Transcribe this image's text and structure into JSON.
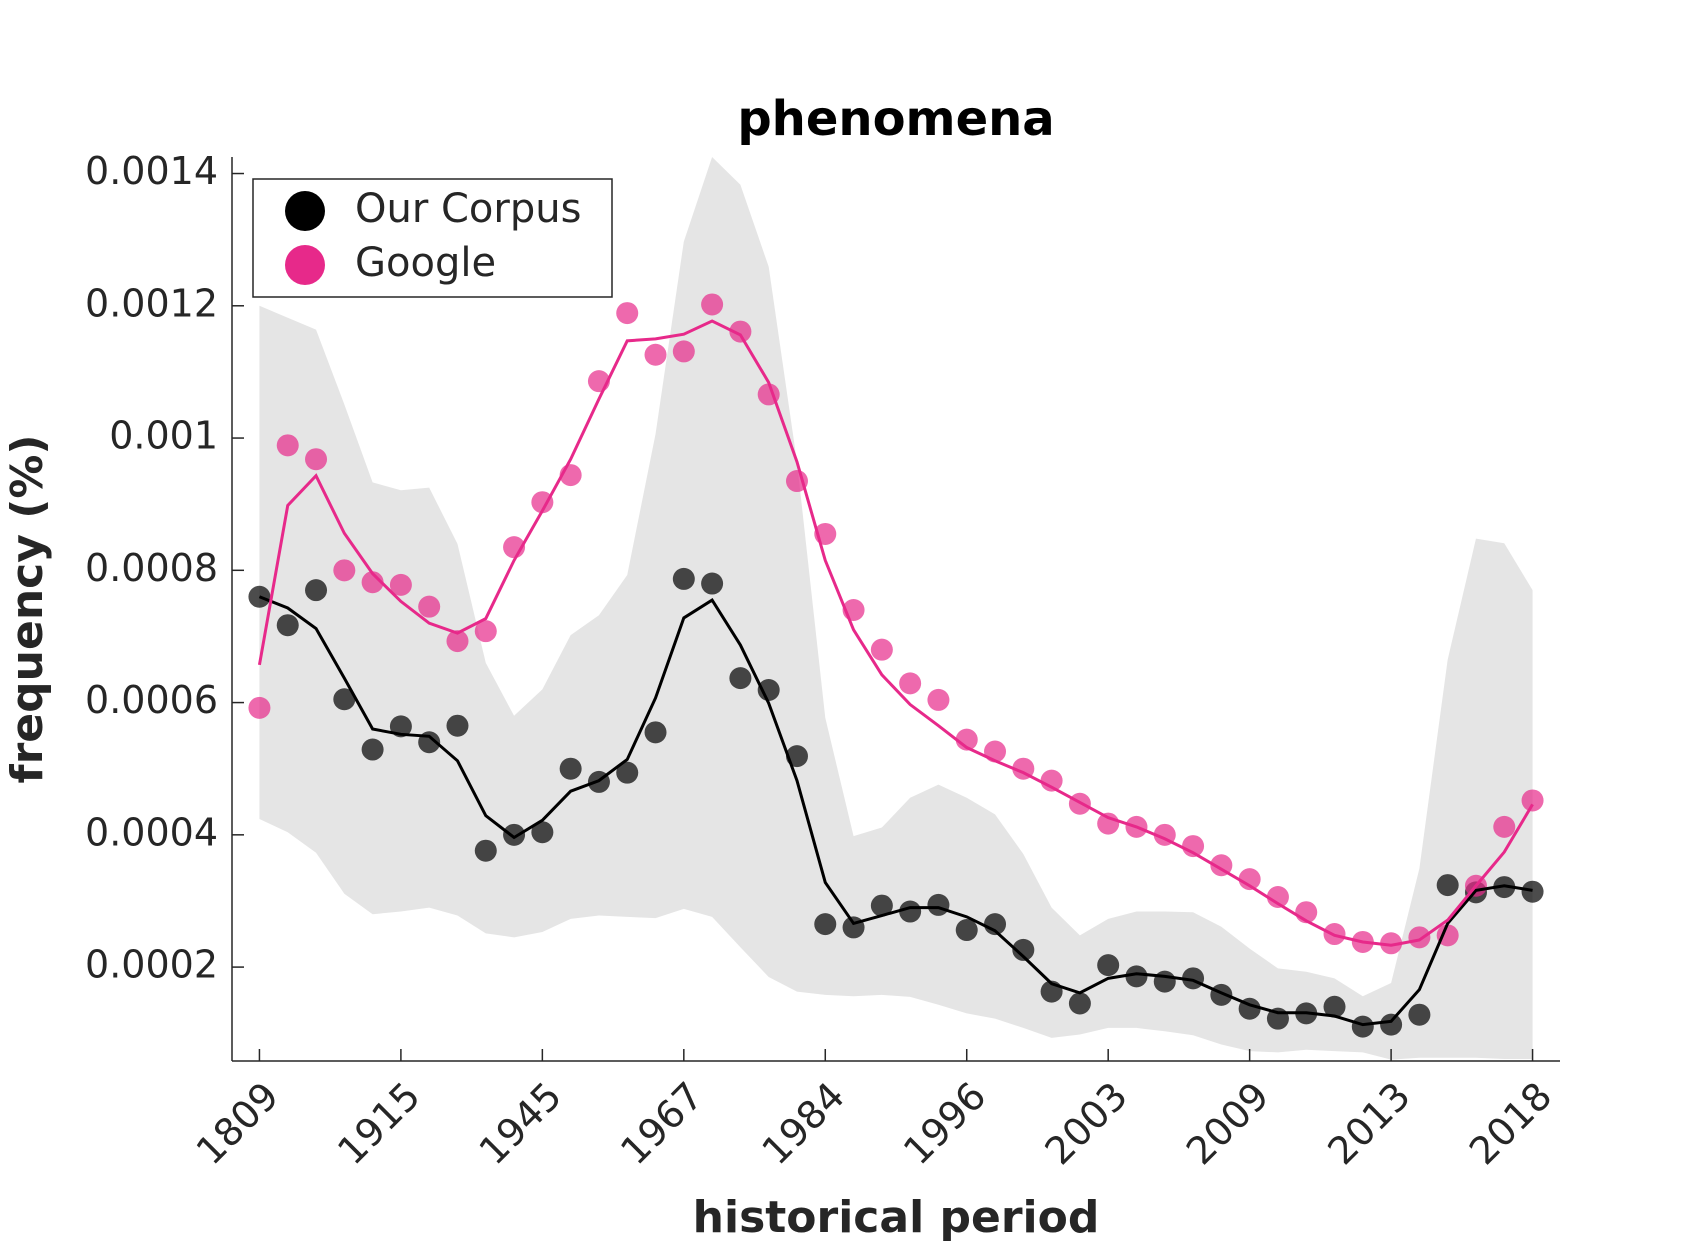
{
  "chart_data": {
    "type": "line",
    "title": "phenomena",
    "xlabel": "historical period",
    "ylabel": "frequency (%)",
    "categories": [
      "1809",
      null,
      null,
      null,
      null,
      "1915",
      null,
      null,
      null,
      null,
      "1945",
      null,
      null,
      null,
      null,
      "1967",
      null,
      null,
      null,
      null,
      "1984",
      null,
      null,
      null,
      null,
      "1996",
      null,
      null,
      null,
      null,
      "2003",
      null,
      null,
      null,
      null,
      "2009",
      null,
      null,
      null,
      null,
      "2013",
      null,
      null,
      null,
      null,
      "2018"
    ],
    "ylim": [
      5.8e-05,
      0.001425
    ],
    "yticks": [
      0.0002,
      0.0004,
      0.0006,
      0.0008,
      0.001,
      0.0012,
      0.0014
    ],
    "legend": "upper left",
    "band": {
      "color": "#e5e5e5",
      "upper": [
        0.0012,
        0.001182,
        0.001164,
        0.001051,
        0.000933,
        0.000921,
        0.000925,
        0.00084,
        0.00066,
        0.00058,
        0.00062,
        0.000702,
        0.000732,
        0.000793,
        0.001006,
        0.001297,
        0.001425,
        0.001383,
        0.001259,
        0.000964,
        0.000577,
        0.000398,
        0.000411,
        0.000456,
        0.000476,
        0.000456,
        0.000431,
        0.000371,
        0.00029,
        0.000248,
        0.000273,
        0.000284,
        0.000284,
        0.000283,
        0.000261,
        0.000228,
        0.000198,
        0.000193,
        0.000183,
        0.000156,
        0.000176,
        0.000349,
        0.000665,
        0.000848,
        0.000841,
        0.00077
      ],
      "lower": [
        0.000424,
        0.000404,
        0.000373,
        0.000311,
        0.00028,
        0.000284,
        0.00029,
        0.000278,
        0.000251,
        0.000245,
        0.000253,
        0.000273,
        0.000278,
        0.000276,
        0.000274,
        0.000288,
        0.000276,
        0.00023,
        0.000185,
        0.000163,
        0.000158,
        0.000156,
        0.000158,
        0.000155,
        0.000143,
        0.00013,
        0.000122,
        0.000108,
        9.3e-05,
        9.8e-05,
        0.000108,
        0.000108,
        0.000103,
        9.7e-05,
        8.3e-05,
        7.3e-05,
        7.1e-05,
        7.5e-05,
        7.3e-05,
        7.1e-05,
        6e-05,
        6.3e-05,
        6.3e-05,
        6.3e-05,
        6.1e-05,
        6.1e-05
      ]
    },
    "series": [
      {
        "name": "Our Corpus",
        "color": "#000000",
        "values": [
          0.00076,
          0.000717,
          0.00077,
          0.000605,
          0.000529,
          0.000564,
          0.00054,
          0.000565,
          0.000376,
          0.0004,
          0.000404,
          0.0005,
          0.00048,
          0.000494,
          0.000555,
          0.000787,
          0.00078,
          0.000637,
          0.000619,
          0.000519,
          0.000265,
          0.00026,
          0.000293,
          0.000284,
          0.000294,
          0.000256,
          0.000265,
          0.000226,
          0.000163,
          0.000145,
          0.000203,
          0.000186,
          0.000178,
          0.000183,
          0.000158,
          0.000137,
          0.000122,
          0.00013,
          0.00014,
          0.00011,
          0.000113,
          0.000128,
          0.000324,
          0.000313,
          0.000321,
          0.000314
        ],
        "smoothed": [
          0.00076,
          0.000743,
          0.000712,
          0.000637,
          0.00056,
          0.000552,
          0.000549,
          0.000512,
          0.000429,
          0.000396,
          0.000422,
          0.000466,
          0.000482,
          0.000514,
          0.000607,
          0.000728,
          0.000755,
          0.000687,
          0.000599,
          0.000482,
          0.000328,
          0.000266,
          0.000278,
          0.00029,
          0.00029,
          0.000276,
          0.000255,
          0.000216,
          0.000175,
          0.000161,
          0.000183,
          0.00019,
          0.000186,
          0.00018,
          0.000161,
          0.000143,
          0.000131,
          0.000131,
          0.000126,
          0.000113,
          0.000118,
          0.000166,
          0.000266,
          0.000316,
          0.000323,
          0.000316
        ]
      },
      {
        "name": "Google",
        "color": "#e7298a",
        "values": [
          0.000592,
          0.000989,
          0.000968,
          0.0008,
          0.000782,
          0.000778,
          0.000745,
          0.000693,
          0.000708,
          0.000835,
          0.000903,
          0.000944,
          0.001086,
          0.001189,
          0.001126,
          0.001131,
          0.001202,
          0.001161,
          0.001066,
          0.000935,
          0.000855,
          0.00074,
          0.00068,
          0.000629,
          0.000604,
          0.000544,
          0.000526,
          0.0005,
          0.000482,
          0.000447,
          0.000417,
          0.000412,
          0.0004,
          0.000383,
          0.000354,
          0.000333,
          0.000306,
          0.000283,
          0.00025,
          0.000238,
          0.000236,
          0.000245,
          0.000248,
          0.000323,
          0.000412,
          0.000452
        ],
        "smoothed": [
          0.000657,
          0.000898,
          0.000943,
          0.000856,
          0.000795,
          0.000753,
          0.00072,
          0.000705,
          0.000727,
          0.000815,
          0.00089,
          0.000968,
          0.001059,
          0.001147,
          0.00115,
          0.001157,
          0.001177,
          0.001156,
          0.001084,
          0.000964,
          0.000815,
          0.00071,
          0.000642,
          0.000597,
          0.000565,
          0.000532,
          0.000512,
          0.000494,
          0.000472,
          0.000449,
          0.000426,
          0.000412,
          0.000394,
          0.000373,
          0.000348,
          0.000323,
          0.000296,
          0.00027,
          0.000248,
          0.000238,
          0.000233,
          0.000241,
          0.000271,
          0.000323,
          0.000374,
          0.000446
        ]
      }
    ]
  }
}
